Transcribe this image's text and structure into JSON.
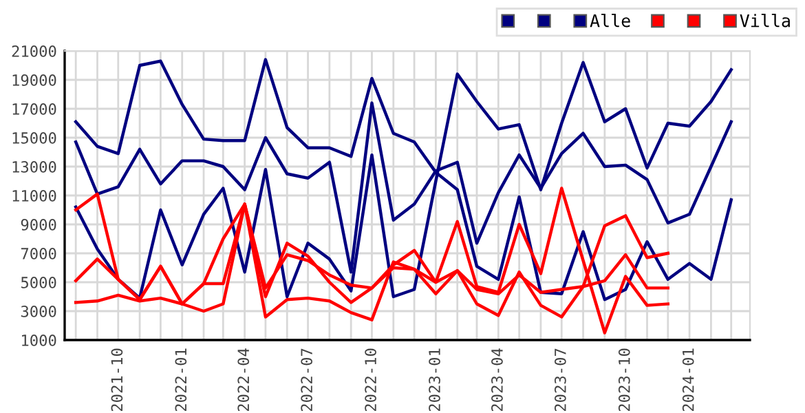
{
  "chart_data": {
    "type": "line",
    "x": [
      "2021-08",
      "2021-09",
      "2021-10",
      "2021-11",
      "2021-12",
      "2022-01",
      "2022-02",
      "2022-03",
      "2022-04",
      "2022-05",
      "2022-06",
      "2022-07",
      "2022-08",
      "2022-09",
      "2022-10",
      "2022-11",
      "2022-12",
      "2023-01",
      "2023-02",
      "2023-03",
      "2023-04",
      "2023-05",
      "2023-06",
      "2023-07",
      "2023-08",
      "2023-09",
      "2023-10",
      "2023-11",
      "2023-12",
      "2024-01",
      "2024-02",
      "2024-03"
    ],
    "series": [
      {
        "color": "#000080",
        "values": [
          16100,
          14400,
          13900,
          20000,
          20300,
          17300,
          14900,
          14800,
          14800,
          20400,
          15700,
          14300,
          14300,
          13700,
          19100,
          15300,
          14700,
          12600,
          11400,
          6100,
          5200,
          10900,
          4300,
          4200,
          8500,
          3800,
          4500,
          7800,
          5200,
          6300,
          5200,
          10700
        ]
      },
      {
        "color": "#000080",
        "values": [
          14700,
          11100,
          11600,
          14200,
          11800,
          13400,
          13400,
          13000,
          11400,
          15000,
          12500,
          12200,
          13300,
          5700,
          17400,
          9300,
          10400,
          12700,
          13300,
          7700,
          11200,
          13800,
          11500,
          13900,
          15300,
          13000,
          13100,
          12100,
          9100,
          9700,
          13000,
          16100
        ]
      },
      {
        "name": "Alle",
        "color": "#000080",
        "values": [
          10200,
          7300,
          5200,
          3900,
          10000,
          6200,
          9700,
          11500,
          5700,
          12800,
          4000,
          7700,
          6600,
          4400,
          13800,
          4000,
          4500,
          12000,
          19400,
          17500,
          15600,
          15900,
          11400,
          16000,
          20200,
          16100,
          17000,
          12900,
          16000,
          15800,
          17500,
          19700
        ]
      },
      {
        "color": "#ff0000",
        "values": [
          10000,
          11100,
          5200,
          3800,
          6100,
          3500,
          4900,
          8000,
          10400,
          4600,
          6900,
          6500,
          5500,
          4800,
          4600,
          6200,
          7200,
          5000,
          9200,
          4700,
          4300,
          9000,
          5600,
          11500,
          6500,
          1500,
          5400,
          3400,
          3500,
          null,
          null,
          null
        ]
      },
      {
        "color": "#ff0000",
        "values": [
          5100,
          6600,
          5200,
          3800,
          6100,
          3500,
          4900,
          4900,
          10400,
          4000,
          7700,
          6800,
          5000,
          3600,
          4600,
          6000,
          5900,
          4200,
          5800,
          3500,
          2700,
          5700,
          3400,
          2600,
          4700,
          8900,
          9600,
          6700,
          7000,
          null,
          null,
          null
        ]
      },
      {
        "name": "Villa",
        "color": "#ff0000",
        "values": [
          3600,
          3700,
          4100,
          3700,
          3900,
          3500,
          3000,
          3500,
          10400,
          2600,
          3800,
          3900,
          3700,
          2900,
          2400,
          6400,
          5900,
          5000,
          5800,
          4500,
          4200,
          5500,
          4300,
          4500,
          4700,
          5100,
          6900,
          4600,
          4600,
          null,
          null,
          null
        ]
      }
    ],
    "xlim": [
      "2021-07-16",
      "2024-03-28"
    ],
    "xticks": [
      {
        "value": "2021-08",
        "label": null
      },
      {
        "value": "2021-09",
        "label": null
      },
      {
        "value": "2021-10",
        "label": "2021-10"
      },
      {
        "value": "2021-11",
        "label": null
      },
      {
        "value": "2021-12",
        "label": null
      },
      {
        "value": "2022-01",
        "label": "2022-01"
      },
      {
        "value": "2022-02",
        "label": null
      },
      {
        "value": "2022-03",
        "label": null
      },
      {
        "value": "2022-04",
        "label": "2022-04"
      },
      {
        "value": "2022-05",
        "label": null
      },
      {
        "value": "2022-06",
        "label": null
      },
      {
        "value": "2022-07",
        "label": "2022-07"
      },
      {
        "value": "2022-08",
        "label": null
      },
      {
        "value": "2022-09",
        "label": null
      },
      {
        "value": "2022-10",
        "label": "2022-10"
      },
      {
        "value": "2022-11",
        "label": null
      },
      {
        "value": "2022-12",
        "label": null
      },
      {
        "value": "2023-01",
        "label": "2023-01"
      },
      {
        "value": "2023-02",
        "label": null
      },
      {
        "value": "2023-03",
        "label": null
      },
      {
        "value": "2023-04",
        "label": "2023-04"
      },
      {
        "value": "2023-05",
        "label": null
      },
      {
        "value": "2023-06",
        "label": null
      },
      {
        "value": "2023-07",
        "label": "2023-07"
      },
      {
        "value": "2023-08",
        "label": null
      },
      {
        "value": "2023-09",
        "label": null
      },
      {
        "value": "2023-10",
        "label": "2023-10"
      },
      {
        "value": "2023-11",
        "label": null
      },
      {
        "value": "2023-12",
        "label": null
      },
      {
        "value": "2024-01",
        "label": "2024-01"
      },
      {
        "value": "2024-02",
        "label": null
      },
      {
        "value": "2024-03",
        "label": null
      }
    ],
    "ylim": [
      1000,
      21000
    ],
    "yticks": [
      1000,
      3000,
      5000,
      7000,
      9000,
      11000,
      13000,
      15000,
      17000,
      19000,
      21000
    ],
    "grid": true,
    "legend": "top right",
    "marker": "none",
    "line_style": "solid"
  }
}
